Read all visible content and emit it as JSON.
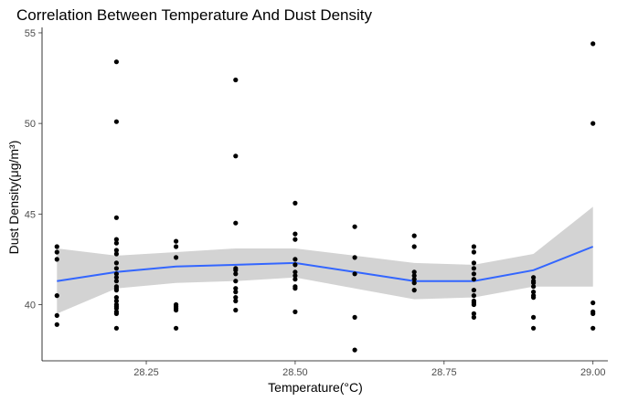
{
  "chart_data": {
    "type": "scatter",
    "title": "Correlation Between Temperature And Dust Density",
    "xlabel": "Temperature(°C)",
    "ylabel": "Dust Density(μg/m³)",
    "xlim": [
      28.075,
      29.025
    ],
    "ylim": [
      36.9,
      55.3
    ],
    "x_ticks": [
      28.25,
      28.5,
      28.75,
      29.0
    ],
    "x_tick_labels": [
      "28.25",
      "28.50",
      "28.75",
      "29.00"
    ],
    "y_ticks": [
      40,
      45,
      50,
      55
    ],
    "y_tick_labels": [
      "40",
      "45",
      "50",
      "55"
    ],
    "grid": false,
    "legend": "none",
    "series": [
      {
        "type": "scatter",
        "color": "#000000",
        "x": [
          28.1,
          28.1,
          28.1,
          28.1,
          28.1,
          28.1,
          28.2,
          28.2,
          28.2,
          28.2,
          28.2,
          28.2,
          28.2,
          28.2,
          28.2,
          28.2,
          28.2,
          28.2,
          28.2,
          28.2,
          28.2,
          28.2,
          28.2,
          28.2,
          28.2,
          28.2,
          28.2,
          28.2,
          28.2,
          28.3,
          28.3,
          28.3,
          28.3,
          28.3,
          28.3,
          28.3,
          28.3,
          28.4,
          28.4,
          28.4,
          28.4,
          28.4,
          28.4,
          28.4,
          28.4,
          28.4,
          28.4,
          28.4,
          28.4,
          28.5,
          28.5,
          28.5,
          28.5,
          28.5,
          28.5,
          28.5,
          28.5,
          28.5,
          28.5,
          28.5,
          28.6,
          28.6,
          28.6,
          28.6,
          28.6,
          28.7,
          28.7,
          28.7,
          28.7,
          28.7,
          28.7,
          28.7,
          28.8,
          28.8,
          28.8,
          28.8,
          28.8,
          28.8,
          28.8,
          28.8,
          28.8,
          28.8,
          28.8,
          28.8,
          28.8,
          28.9,
          28.9,
          28.9,
          28.9,
          28.9,
          28.9,
          28.9,
          28.9,
          28.9,
          29.0,
          29.0,
          29.0,
          29.0,
          29.0,
          29.0
        ],
        "y": [
          43.2,
          42.5,
          40.5,
          39.4,
          38.9,
          42.9,
          53.4,
          50.1,
          44.8,
          43.6,
          43.4,
          42.8,
          42.0,
          41.7,
          41.5,
          41.0,
          40.8,
          40.4,
          40.2,
          40.0,
          39.8,
          39.6,
          39.5,
          38.7,
          41.3,
          42.3,
          43.0,
          40.9,
          39.9,
          43.5,
          43.2,
          42.6,
          40.0,
          39.8,
          39.7,
          38.7,
          39.9,
          52.4,
          48.2,
          44.5,
          41.9,
          41.7,
          41.3,
          40.7,
          40.4,
          40.2,
          39.7,
          42.0,
          40.9,
          45.6,
          43.9,
          43.6,
          42.5,
          41.8,
          41.6,
          41.4,
          41.0,
          40.9,
          39.6,
          42.2,
          44.3,
          42.6,
          41.7,
          39.3,
          37.5,
          43.8,
          43.2,
          41.8,
          41.4,
          41.2,
          40.8,
          41.6,
          43.2,
          42.9,
          42.3,
          42.0,
          41.7,
          41.4,
          40.5,
          40.1,
          40.0,
          39.5,
          39.3,
          40.2,
          40.8,
          41.5,
          41.3,
          40.7,
          40.5,
          39.3,
          38.7,
          41.0,
          40.4,
          41.2,
          54.4,
          50.0,
          40.1,
          39.6,
          39.5,
          38.7
        ]
      },
      {
        "type": "smooth",
        "color": "#3366ff",
        "band_color": "#d3d3d3",
        "x": [
          28.1,
          28.2,
          28.3,
          28.4,
          28.5,
          28.6,
          28.7,
          28.8,
          28.9,
          29.0
        ],
        "y": [
          41.3,
          41.8,
          42.1,
          42.2,
          42.3,
          41.8,
          41.3,
          41.3,
          41.9,
          43.2
        ],
        "lower": [
          39.5,
          40.9,
          41.2,
          41.3,
          41.5,
          40.9,
          40.3,
          40.4,
          41.0,
          41.0
        ],
        "upper": [
          43.1,
          42.7,
          42.9,
          43.1,
          43.1,
          42.7,
          42.3,
          42.2,
          42.8,
          45.4
        ]
      }
    ]
  }
}
